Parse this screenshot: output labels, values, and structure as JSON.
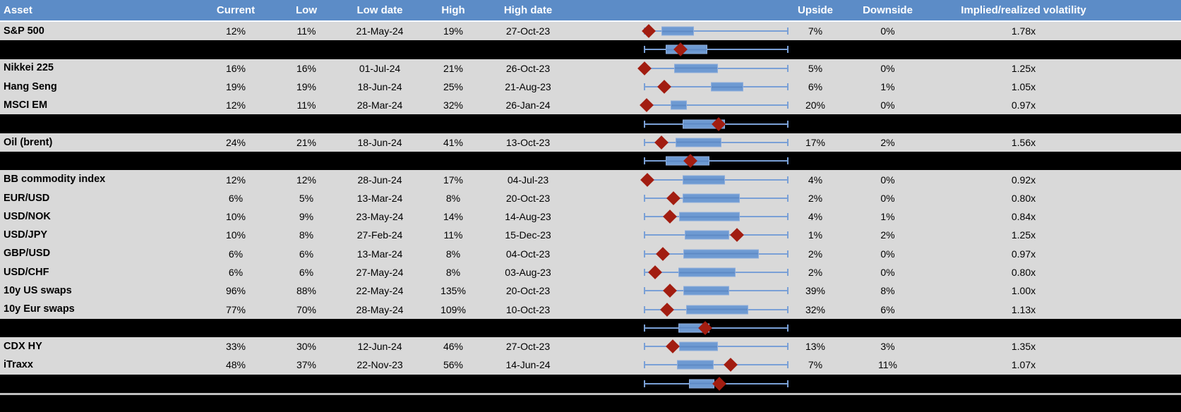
{
  "colors": {
    "header_bg": "#5C8CC7",
    "header_text": "#FFFFFF",
    "row_bg": "#D9D9D9",
    "summary_bg": "#000000",
    "box_fill": "#6E9AD2",
    "box_border": "#8FAEDC",
    "box_midline": "#5E8AC5",
    "whisker": "#7AA0D6",
    "marker": "#A21D11",
    "divider": "#BFBFBF",
    "text": "#000000"
  },
  "chart_data": {
    "type": "table",
    "title": "",
    "columns": [
      {
        "key": "asset",
        "label": "Asset"
      },
      {
        "key": "current",
        "label": "Current"
      },
      {
        "key": "low",
        "label": "Low"
      },
      {
        "key": "low_date",
        "label": "Low date"
      },
      {
        "key": "high",
        "label": "High"
      },
      {
        "key": "high_date",
        "label": "High date"
      },
      {
        "key": "chart",
        "label": ""
      },
      {
        "key": "upside",
        "label": "Upside"
      },
      {
        "key": "downside",
        "label": "Downside"
      },
      {
        "key": "implied_realized",
        "label": "Implied/realized volatility"
      }
    ],
    "boxplot_note": "percent positions across whisker track; marker = red diamond (current level)",
    "rows": [
      {
        "type": "data",
        "asset": "S&P 500",
        "current": "12%",
        "low": "11%",
        "low_date": "21-May-24",
        "high": "19%",
        "high_date": "27-Oct-23",
        "upside": "7%",
        "downside": "0%",
        "implied_realized": "1.78x",
        "boxplot_pct": {
          "whisker_lo": 0,
          "q1": 12,
          "q3": 34.5,
          "whisker_hi": 100,
          "marker": 3
        }
      },
      {
        "type": "summary",
        "boxplot_pct": {
          "whisker_lo": 0,
          "q1": 14.8,
          "q3": 43.8,
          "whisker_hi": 100,
          "marker": 25.1
        }
      },
      {
        "type": "data",
        "asset": "Nikkei 225",
        "current": "16%",
        "low": "16%",
        "low_date": "01-Jul-24",
        "high": "21%",
        "high_date": "26-Oct-23",
        "upside": "5%",
        "downside": "0%",
        "implied_realized": "1.25x",
        "boxplot_pct": {
          "whisker_lo": 0,
          "q1": 20.7,
          "q3": 51.2,
          "whisker_hi": 100,
          "marker": 0
        }
      },
      {
        "type": "data",
        "asset": "Hang Seng",
        "current": "19%",
        "low": "19%",
        "low_date": "18-Jun-24",
        "high": "25%",
        "high_date": "21-Aug-23",
        "upside": "6%",
        "downside": "1%",
        "implied_realized": "1.05x",
        "boxplot_pct": {
          "whisker_lo": 0,
          "q1": 46.3,
          "q3": 69,
          "whisker_hi": 100,
          "marker": 13.8
        }
      },
      {
        "type": "data",
        "asset": "MSCI EM",
        "current": "12%",
        "low": "11%",
        "low_date": "28-Mar-24",
        "high": "32%",
        "high_date": "26-Jan-24",
        "upside": "20%",
        "downside": "0%",
        "implied_realized": "0.97x",
        "boxplot_pct": {
          "whisker_lo": 0,
          "q1": 18.2,
          "q3": 29.6,
          "whisker_hi": 100,
          "marker": 1.5
        }
      },
      {
        "type": "summary",
        "boxplot_pct": {
          "whisker_lo": 0,
          "q1": 26.6,
          "q3": 56.2,
          "whisker_hi": 100,
          "marker": 51.7
        }
      },
      {
        "type": "data",
        "asset": "Oil (brent)",
        "current": "24%",
        "low": "21%",
        "low_date": "18-Jun-24",
        "high": "41%",
        "high_date": "13-Oct-23",
        "upside": "17%",
        "downside": "2%",
        "implied_realized": "1.56x",
        "boxplot_pct": {
          "whisker_lo": 0,
          "q1": 21.7,
          "q3": 53.7,
          "whisker_hi": 100,
          "marker": 11.8
        }
      },
      {
        "type": "summary",
        "boxplot_pct": {
          "whisker_lo": 0,
          "q1": 14.8,
          "q3": 45.3,
          "whisker_hi": 100,
          "marker": 32
        }
      },
      {
        "type": "data",
        "asset": "BB commodity index",
        "current": "12%",
        "low": "12%",
        "low_date": "28-Jun-24",
        "high": "17%",
        "high_date": "04-Jul-23",
        "upside": "4%",
        "downside": "0%",
        "implied_realized": "0.92x",
        "boxplot_pct": {
          "whisker_lo": 0,
          "q1": 26.6,
          "q3": 56.2,
          "whisker_hi": 100,
          "marker": 2
        }
      },
      {
        "type": "data",
        "asset": "EUR/USD",
        "current": "6%",
        "low": "5%",
        "low_date": "13-Mar-24",
        "high": "8%",
        "high_date": "20-Oct-23",
        "upside": "2%",
        "downside": "0%",
        "implied_realized": "0.80x",
        "boxplot_pct": {
          "whisker_lo": 0,
          "q1": 26.6,
          "q3": 66.5,
          "whisker_hi": 100,
          "marker": 20.2
        }
      },
      {
        "type": "data",
        "asset": "USD/NOK",
        "current": "10%",
        "low": "9%",
        "low_date": "23-May-24",
        "high": "14%",
        "high_date": "14-Aug-23",
        "upside": "4%",
        "downside": "1%",
        "implied_realized": "0.84x",
        "boxplot_pct": {
          "whisker_lo": 0,
          "q1": 24.1,
          "q3": 66.5,
          "whisker_hi": 100,
          "marker": 17.7
        }
      },
      {
        "type": "data",
        "asset": "USD/JPY",
        "current": "10%",
        "low": "8%",
        "low_date": "27-Feb-24",
        "high": "11%",
        "high_date": "15-Dec-23",
        "upside": "1%",
        "downside": "2%",
        "implied_realized": "1.25x",
        "boxplot_pct": {
          "whisker_lo": 0,
          "q1": 28.1,
          "q3": 59.1,
          "whisker_hi": 100,
          "marker": 64.5
        }
      },
      {
        "type": "data",
        "asset": "GBP/USD",
        "current": "6%",
        "low": "6%",
        "low_date": "13-Mar-24",
        "high": "8%",
        "high_date": "04-Oct-23",
        "upside": "2%",
        "downside": "0%",
        "implied_realized": "0.97x",
        "boxplot_pct": {
          "whisker_lo": 0,
          "q1": 27.1,
          "q3": 79.8,
          "whisker_hi": 100,
          "marker": 12.8
        }
      },
      {
        "type": "data",
        "asset": "USD/CHF",
        "current": "6%",
        "low": "6%",
        "low_date": "27-May-24",
        "high": "8%",
        "high_date": "03-Aug-23",
        "upside": "2%",
        "downside": "0%",
        "implied_realized": "0.80x",
        "boxplot_pct": {
          "whisker_lo": 0,
          "q1": 23.6,
          "q3": 63.5,
          "whisker_hi": 100,
          "marker": 7.4
        }
      },
      {
        "type": "data",
        "asset": "10y US swaps",
        "current": "96%",
        "low": "88%",
        "low_date": "22-May-24",
        "high": "135%",
        "high_date": "20-Oct-23",
        "upside": "39%",
        "downside": "8%",
        "implied_realized": "1.00x",
        "boxplot_pct": {
          "whisker_lo": 0,
          "q1": 27.1,
          "q3": 59.1,
          "whisker_hi": 100,
          "marker": 17.7
        }
      },
      {
        "type": "data",
        "asset": "10y Eur swaps",
        "current": "77%",
        "low": "70%",
        "low_date": "28-May-24",
        "high": "109%",
        "high_date": "10-Oct-23",
        "upside": "32%",
        "downside": "6%",
        "implied_realized": "1.13x",
        "boxplot_pct": {
          "whisker_lo": 0,
          "q1": 29.1,
          "q3": 72.4,
          "whisker_hi": 100,
          "marker": 15.8
        }
      },
      {
        "type": "summary",
        "boxplot_pct": {
          "whisker_lo": 0,
          "q1": 23.6,
          "q3": 45.3,
          "whisker_hi": 100,
          "marker": 42.4
        }
      },
      {
        "type": "data",
        "asset": "CDX HY",
        "current": "33%",
        "low": "30%",
        "low_date": "12-Jun-24",
        "high": "46%",
        "high_date": "27-Oct-23",
        "upside": "13%",
        "downside": "3%",
        "implied_realized": "1.35x",
        "boxplot_pct": {
          "whisker_lo": 0,
          "q1": 24.1,
          "q3": 51.2,
          "whisker_hi": 100,
          "marker": 19.7
        }
      },
      {
        "type": "data",
        "asset": "iTraxx",
        "current": "48%",
        "low": "37%",
        "low_date": "22-Nov-23",
        "high": "56%",
        "high_date": "14-Jun-24",
        "upside": "7%",
        "downside": "11%",
        "implied_realized": "1.07x",
        "boxplot_pct": {
          "whisker_lo": 0,
          "q1": 22.7,
          "q3": 48.3,
          "whisker_hi": 100,
          "marker": 60.1
        }
      },
      {
        "type": "summary",
        "boxplot_pct": {
          "whisker_lo": 0,
          "q1": 31,
          "q3": 48.8,
          "whisker_hi": 100,
          "marker": 52.2
        }
      }
    ]
  }
}
